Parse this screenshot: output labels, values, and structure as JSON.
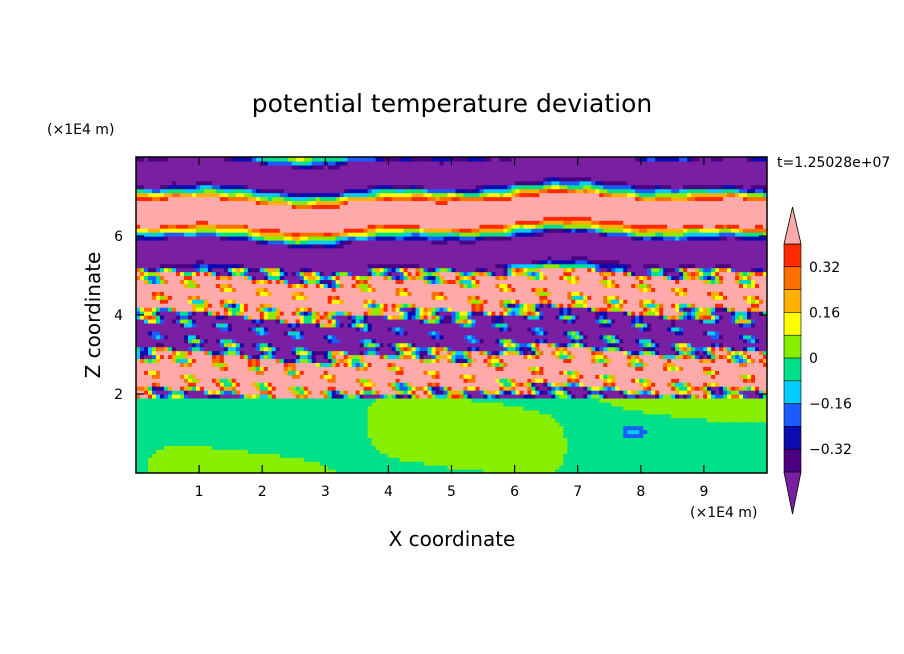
{
  "chart_data": {
    "type": "heatmap",
    "title": "potential temperature deviation",
    "xlabel": "X coordinate",
    "ylabel": "Z coordinate",
    "x_unit": "(×1E4 m)",
    "y_unit": "(×1E4 m)",
    "time_label": "t=1.25028e+07",
    "xlim": [
      0,
      10
    ],
    "ylim": [
      0,
      8
    ],
    "x_ticks": [
      "1",
      "2",
      "3",
      "4",
      "5",
      "6",
      "7",
      "8",
      "9"
    ],
    "y_ticks": [
      "2",
      "4",
      "6"
    ],
    "colorbar": {
      "levels": [
        -0.48,
        -0.4,
        -0.32,
        -0.24,
        -0.16,
        -0.08,
        0,
        0.08,
        0.16,
        0.24,
        0.32,
        0.4,
        0.48
      ],
      "tick_labels": [
        "0.32",
        "0.16",
        "0",
        "−0.16",
        "−0.32"
      ],
      "tick_values": [
        0.32,
        0.16,
        0,
        -0.16,
        -0.32
      ],
      "colors": [
        "#7a1fa2",
        "#4b0082",
        "#0b0bb0",
        "#1a5cff",
        "#00ccff",
        "#00e08a",
        "#88ee00",
        "#ffff00",
        "#ffb000",
        "#ff7000",
        "#ff2a00",
        "#ffaaaa"
      ],
      "extend": "both"
    },
    "regions": [
      {
        "z": [
          0,
          2
        ],
        "description": "mostly near-zero (green/light green) lower layer"
      },
      {
        "z": [
          2,
          8
        ],
        "description": "alternating positive (pink) and negative (purple) banded layers with turbulent mixing between z=2 and z=5"
      }
    ],
    "grid": false
  }
}
